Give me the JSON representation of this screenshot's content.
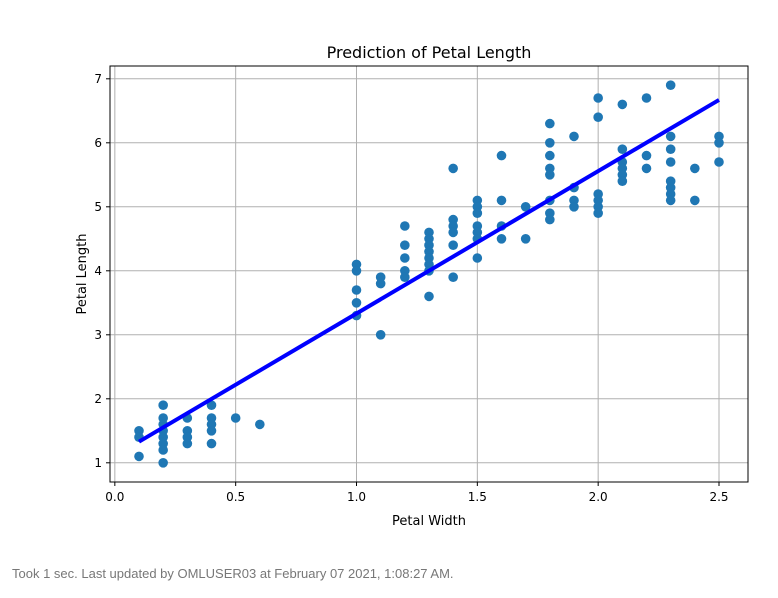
{
  "chart_data": {
    "type": "scatter",
    "title": "Prediction of Petal Length",
    "xlabel": "Petal Width",
    "ylabel": "Petal Length",
    "xlim": [
      -0.02,
      2.62
    ],
    "ylim": [
      0.7,
      7.2
    ],
    "xticks": [
      "0.0",
      "0.5",
      "1.0",
      "1.5",
      "2.0",
      "2.5"
    ],
    "yticks": [
      "1",
      "2",
      "3",
      "4",
      "5",
      "6",
      "7"
    ],
    "grid": true,
    "points_color": "#1f77b4",
    "line_color": "#0000ff",
    "points": [
      [
        0.1,
        1.5
      ],
      [
        0.1,
        1.4
      ],
      [
        0.1,
        1.1
      ],
      [
        0.2,
        1.9
      ],
      [
        0.2,
        1.7
      ],
      [
        0.2,
        1.6
      ],
      [
        0.2,
        1.5
      ],
      [
        0.2,
        1.4
      ],
      [
        0.2,
        1.3
      ],
      [
        0.2,
        1.2
      ],
      [
        0.2,
        1.0
      ],
      [
        0.3,
        1.7
      ],
      [
        0.3,
        1.5
      ],
      [
        0.3,
        1.4
      ],
      [
        0.3,
        1.3
      ],
      [
        0.4,
        1.9
      ],
      [
        0.4,
        1.7
      ],
      [
        0.4,
        1.6
      ],
      [
        0.4,
        1.5
      ],
      [
        0.4,
        1.3
      ],
      [
        0.5,
        1.7
      ],
      [
        0.6,
        1.6
      ],
      [
        1.0,
        4.1
      ],
      [
        1.0,
        4.0
      ],
      [
        1.0,
        3.7
      ],
      [
        1.0,
        3.5
      ],
      [
        1.0,
        3.3
      ],
      [
        1.1,
        3.9
      ],
      [
        1.1,
        3.8
      ],
      [
        1.1,
        3.0
      ],
      [
        1.2,
        4.7
      ],
      [
        1.2,
        4.4
      ],
      [
        1.2,
        4.2
      ],
      [
        1.2,
        4.0
      ],
      [
        1.2,
        3.9
      ],
      [
        1.3,
        4.6
      ],
      [
        1.3,
        4.5
      ],
      [
        1.3,
        4.4
      ],
      [
        1.3,
        4.3
      ],
      [
        1.3,
        4.2
      ],
      [
        1.3,
        4.1
      ],
      [
        1.3,
        4.0
      ],
      [
        1.3,
        3.6
      ],
      [
        1.4,
        5.6
      ],
      [
        1.4,
        4.8
      ],
      [
        1.4,
        4.7
      ],
      [
        1.4,
        4.6
      ],
      [
        1.4,
        4.4
      ],
      [
        1.4,
        3.9
      ],
      [
        1.5,
        5.1
      ],
      [
        1.5,
        5.0
      ],
      [
        1.5,
        4.9
      ],
      [
        1.5,
        4.7
      ],
      [
        1.5,
        4.6
      ],
      [
        1.5,
        4.5
      ],
      [
        1.5,
        4.2
      ],
      [
        1.6,
        5.8
      ],
      [
        1.6,
        5.1
      ],
      [
        1.6,
        4.7
      ],
      [
        1.6,
        4.5
      ],
      [
        1.7,
        5.0
      ],
      [
        1.7,
        4.5
      ],
      [
        1.8,
        6.3
      ],
      [
        1.8,
        6.0
      ],
      [
        1.8,
        5.8
      ],
      [
        1.8,
        5.6
      ],
      [
        1.8,
        5.5
      ],
      [
        1.8,
        5.1
      ],
      [
        1.8,
        4.9
      ],
      [
        1.8,
        4.8
      ],
      [
        1.9,
        6.1
      ],
      [
        1.9,
        5.3
      ],
      [
        1.9,
        5.1
      ],
      [
        1.9,
        5.0
      ],
      [
        2.0,
        6.7
      ],
      [
        2.0,
        6.4
      ],
      [
        2.0,
        5.2
      ],
      [
        2.0,
        5.1
      ],
      [
        2.0,
        5.0
      ],
      [
        2.0,
        4.9
      ],
      [
        2.1,
        6.6
      ],
      [
        2.1,
        5.9
      ],
      [
        2.1,
        5.7
      ],
      [
        2.1,
        5.6
      ],
      [
        2.1,
        5.5
      ],
      [
        2.1,
        5.4
      ],
      [
        2.2,
        6.7
      ],
      [
        2.2,
        5.8
      ],
      [
        2.2,
        5.6
      ],
      [
        2.3,
        6.9
      ],
      [
        2.3,
        6.1
      ],
      [
        2.3,
        5.9
      ],
      [
        2.3,
        5.7
      ],
      [
        2.3,
        5.4
      ],
      [
        2.3,
        5.3
      ],
      [
        2.3,
        5.2
      ],
      [
        2.3,
        5.1
      ],
      [
        2.4,
        5.6
      ],
      [
        2.4,
        5.1
      ],
      [
        2.5,
        6.1
      ],
      [
        2.5,
        6.0
      ],
      [
        2.5,
        5.7
      ]
    ],
    "regression_line": {
      "x": [
        0.1,
        2.5
      ],
      "y": [
        1.33,
        6.67
      ]
    }
  },
  "status_text": "Took 1 sec. Last updated by OMLUSER03 at February 07 2021, 1:08:27 AM."
}
